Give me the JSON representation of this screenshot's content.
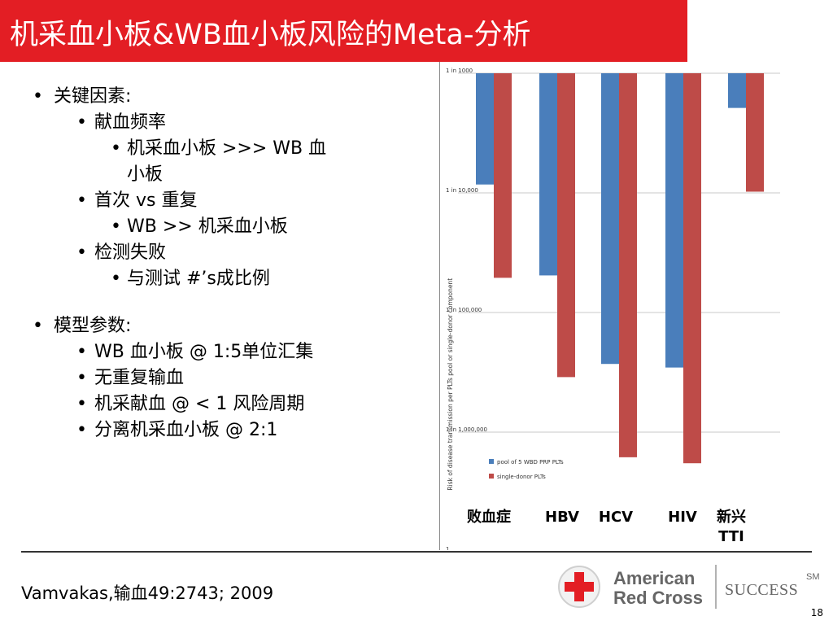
{
  "slide": {
    "title": "机采血小板&WB血小板风险的Meta-分析",
    "bullets": [
      {
        "level": 1,
        "text": "关键因素:"
      },
      {
        "level": 2,
        "text": "献血频率"
      },
      {
        "level": 3,
        "text": "机采血小板 >>> WB 血"
      },
      {
        "level": 3,
        "text": "小板",
        "cont": true
      },
      {
        "level": 2,
        "text": "首次 vs 重复"
      },
      {
        "level": 3,
        "text": "WB >> 机采血小板"
      },
      {
        "level": 2,
        "text": "检测失败"
      },
      {
        "level": 3,
        "text": "与测试  #’s成比例"
      },
      {
        "level": 1,
        "text": "模型参数:"
      },
      {
        "level": 2,
        "text": "WB 血小板 @ 1:5单位汇集"
      },
      {
        "level": 2,
        "text": "无重复输血"
      },
      {
        "level": 2,
        "text": "机采献血 @ < 1 风险周期"
      },
      {
        "level": 2,
        "text": "分离机采血小板 @ 2:1"
      }
    ],
    "bullet_glyph": "•",
    "citation": "Vamvakas,输血49:2743; 2009",
    "page_number": "18",
    "logo": {
      "line1": "American",
      "line2": "Red Cross",
      "tagline": "SUCCESS",
      "sup": "SM"
    }
  },
  "chart_data": {
    "type": "bar",
    "scale": "log",
    "orientation": "inverted",
    "ylabel": "Risk of disease transmission per PLTs pool or single-donor component",
    "yticks": [
      "1 in 1000",
      "1 in 10,000",
      "1 in 100,000",
      "1 in 1,000,000",
      "1"
    ],
    "ylim_exponent": [
      3,
      7
    ],
    "categories": [
      "败血症",
      "HBV",
      "HCV",
      "HIV",
      "新兴 TTI"
    ],
    "series": [
      {
        "name": "pool of 5 WBD PRP PLTs",
        "color": "#4a7ebb",
        "values_exponent": [
          3.93,
          4.69,
          5.43,
          5.46,
          3.29
        ]
      },
      {
        "name": "single-donor PLTs",
        "color": "#be4b48",
        "values_exponent": [
          4.71,
          5.54,
          6.21,
          6.26,
          3.99
        ]
      }
    ],
    "legend_position": "bottom-left",
    "grid": true
  }
}
